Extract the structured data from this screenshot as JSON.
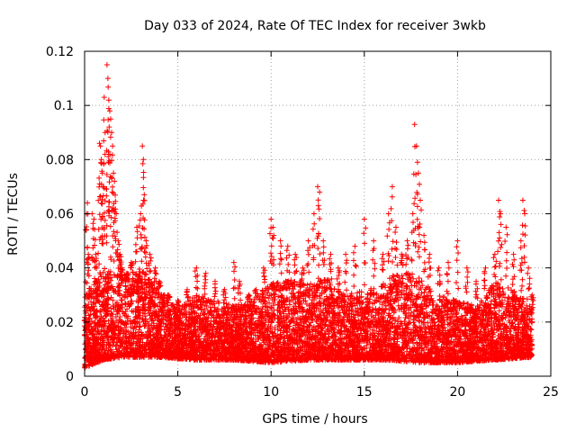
{
  "chart_data": {
    "type": "scatter",
    "title": "Day 033 of 2024, Rate Of TEC Index for receiver 3wkb",
    "xlabel": "GPS time / hours",
    "ylabel": "ROTI / TECUs",
    "xlim": [
      0,
      25
    ],
    "ylim": [
      0,
      0.12
    ],
    "x_ticks": [
      0,
      5,
      10,
      15,
      20,
      25
    ],
    "y_ticks": [
      0,
      0.02,
      0.04,
      0.06,
      0.08,
      0.1,
      0.12
    ],
    "x_tick_labels": [
      "0",
      "5",
      "10",
      "15",
      "20",
      "25"
    ],
    "y_tick_labels": [
      "0",
      "0.02",
      "0.04",
      "0.06",
      "0.08",
      "0.1",
      "0.12"
    ],
    "grid": true,
    "marker": "plus",
    "color": "#ff0000",
    "series": [
      {
        "name": "ROTI",
        "points": [
          [
            0.05,
            0.01
          ],
          [
            0.1,
            0.06
          ],
          [
            0.15,
            0.064
          ],
          [
            0.2,
            0.045
          ],
          [
            0.3,
            0.03
          ],
          [
            0.4,
            0.06
          ],
          [
            0.5,
            0.058
          ],
          [
            0.6,
            0.045
          ],
          [
            0.7,
            0.028
          ],
          [
            0.8,
            0.086
          ],
          [
            0.85,
            0.085
          ],
          [
            0.9,
            0.08
          ],
          [
            0.95,
            0.075
          ],
          [
            1.0,
            0.07
          ],
          [
            1.05,
            0.103
          ],
          [
            1.1,
            0.09
          ],
          [
            1.2,
            0.115
          ],
          [
            1.25,
            0.11
          ],
          [
            1.3,
            0.102
          ],
          [
            1.35,
            0.098
          ],
          [
            1.4,
            0.095
          ],
          [
            1.45,
            0.09
          ],
          [
            1.5,
            0.085
          ],
          [
            1.55,
            0.075
          ],
          [
            1.6,
            0.072
          ],
          [
            1.7,
            0.06
          ],
          [
            1.8,
            0.05
          ],
          [
            1.9,
            0.045
          ],
          [
            2.0,
            0.04
          ],
          [
            2.2,
            0.035
          ],
          [
            2.5,
            0.042
          ],
          [
            2.8,
            0.055
          ],
          [
            3.0,
            0.06
          ],
          [
            3.1,
            0.085
          ],
          [
            3.15,
            0.08
          ],
          [
            3.2,
            0.067
          ],
          [
            3.3,
            0.05
          ],
          [
            3.5,
            0.045
          ],
          [
            3.8,
            0.04
          ],
          [
            4.0,
            0.035
          ],
          [
            4.5,
            0.03
          ],
          [
            5.0,
            0.028
          ],
          [
            5.5,
            0.032
          ],
          [
            6.0,
            0.04
          ],
          [
            6.5,
            0.038
          ],
          [
            7.0,
            0.035
          ],
          [
            7.5,
            0.032
          ],
          [
            8.0,
            0.042
          ],
          [
            8.3,
            0.035
          ],
          [
            8.8,
            0.03
          ],
          [
            9.2,
            0.032
          ],
          [
            9.6,
            0.04
          ],
          [
            10.0,
            0.058
          ],
          [
            10.1,
            0.055
          ],
          [
            10.5,
            0.05
          ],
          [
            10.9,
            0.048
          ],
          [
            11.3,
            0.045
          ],
          [
            11.7,
            0.04
          ],
          [
            12.0,
            0.05
          ],
          [
            12.3,
            0.06
          ],
          [
            12.5,
            0.07
          ],
          [
            12.6,
            0.068
          ],
          [
            12.8,
            0.05
          ],
          [
            13.2,
            0.045
          ],
          [
            13.6,
            0.04
          ],
          [
            14.0,
            0.045
          ],
          [
            14.5,
            0.048
          ],
          [
            15.0,
            0.058
          ],
          [
            15.5,
            0.05
          ],
          [
            16.0,
            0.045
          ],
          [
            16.3,
            0.06
          ],
          [
            16.5,
            0.07
          ],
          [
            16.7,
            0.055
          ],
          [
            17.0,
            0.045
          ],
          [
            17.3,
            0.05
          ],
          [
            17.6,
            0.06
          ],
          [
            17.7,
            0.093
          ],
          [
            17.8,
            0.085
          ],
          [
            17.9,
            0.075
          ],
          [
            18.0,
            0.065
          ],
          [
            18.2,
            0.052
          ],
          [
            18.5,
            0.045
          ],
          [
            19.0,
            0.04
          ],
          [
            19.5,
            0.042
          ],
          [
            20.0,
            0.05
          ],
          [
            20.5,
            0.04
          ],
          [
            21.0,
            0.035
          ],
          [
            21.5,
            0.04
          ],
          [
            22.0,
            0.045
          ],
          [
            22.2,
            0.065
          ],
          [
            22.3,
            0.06
          ],
          [
            22.6,
            0.055
          ],
          [
            23.0,
            0.045
          ],
          [
            23.4,
            0.05
          ],
          [
            23.5,
            0.065
          ],
          [
            23.6,
            0.06
          ],
          [
            23.8,
            0.04
          ],
          [
            24.0,
            0.03
          ]
        ]
      }
    ],
    "background_band": {
      "description": "dense cloud of ROTI points between the listed bounds",
      "x_range": [
        0,
        24
      ],
      "lower": [
        [
          0,
          0.003
        ],
        [
          1,
          0.006
        ],
        [
          2,
          0.007
        ],
        [
          4,
          0.007
        ],
        [
          6,
          0.006
        ],
        [
          8,
          0.006
        ],
        [
          10,
          0.005
        ],
        [
          12,
          0.006
        ],
        [
          14,
          0.006
        ],
        [
          16,
          0.006
        ],
        [
          18,
          0.005
        ],
        [
          20,
          0.005
        ],
        [
          22,
          0.006
        ],
        [
          24,
          0.007
        ]
      ],
      "upper": [
        [
          0,
          0.03
        ],
        [
          1,
          0.04
        ],
        [
          2,
          0.038
        ],
        [
          3,
          0.04
        ],
        [
          4,
          0.032
        ],
        [
          5,
          0.025
        ],
        [
          6,
          0.03
        ],
        [
          7,
          0.028
        ],
        [
          8,
          0.026
        ],
        [
          9,
          0.028
        ],
        [
          10,
          0.035
        ],
        [
          11,
          0.036
        ],
        [
          12,
          0.034
        ],
        [
          13,
          0.036
        ],
        [
          14,
          0.03
        ],
        [
          15,
          0.032
        ],
        [
          16,
          0.034
        ],
        [
          17,
          0.04
        ],
        [
          18,
          0.036
        ],
        [
          19,
          0.03
        ],
        [
          20,
          0.028
        ],
        [
          21,
          0.026
        ],
        [
          22,
          0.035
        ],
        [
          23,
          0.032
        ],
        [
          24,
          0.025
        ]
      ]
    }
  }
}
